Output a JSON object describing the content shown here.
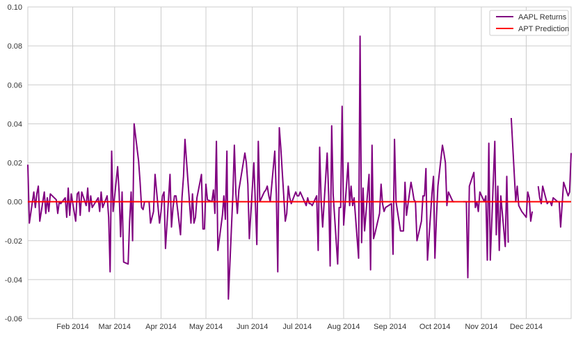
{
  "chart_data": {
    "type": "line",
    "title": "",
    "xlabel": "",
    "ylabel": "",
    "ylim": [
      -0.06,
      0.1
    ],
    "yticks": [
      -0.06,
      -0.04,
      -0.02,
      0.0,
      0.02,
      0.04,
      0.06,
      0.08,
      0.1
    ],
    "ytick_labels": [
      "-0.06",
      "-0.04",
      "-0.02",
      "0.00",
      "0.02",
      "0.04",
      "0.06",
      "0.08",
      "0.10"
    ],
    "xlim": [
      "2014-01-02",
      "2014-12-31"
    ],
    "xticks": [
      "2014-02-01",
      "2014-03-01",
      "2014-04-01",
      "2014-05-01",
      "2014-06-01",
      "2014-07-01",
      "2014-08-01",
      "2014-09-01",
      "2014-10-01",
      "2014-11-01",
      "2014-12-01"
    ],
    "xtick_labels": [
      "Feb 2014",
      "Mar 2014",
      "Apr 2014",
      "May 2014",
      "Jun 2014",
      "Jul 2014",
      "Aug 2014",
      "Sep 2014",
      "Oct 2014",
      "Nov 2014",
      "Dec 2014"
    ],
    "grid": true,
    "legend_position": "top-right",
    "series": [
      {
        "name": "AAPL Returns",
        "color": "#800080",
        "points": [
          [
            "2014-01-02",
            0.019
          ],
          [
            "2014-01-03",
            -0.011
          ],
          [
            "2014-01-06",
            0.005
          ],
          [
            "2014-01-07",
            -0.003
          ],
          [
            "2014-01-08",
            0.004
          ],
          [
            "2014-01-09",
            0.008
          ],
          [
            "2014-01-10",
            -0.01
          ],
          [
            "2014-01-13",
            0.005
          ],
          [
            "2014-01-14",
            -0.006
          ],
          [
            "2014-01-15",
            0.002
          ],
          [
            "2014-01-16",
            -0.005
          ],
          [
            "2014-01-17",
            0.004
          ],
          [
            "2014-01-21",
            0.001
          ],
          [
            "2014-01-22",
            -0.006
          ],
          [
            "2014-01-23",
            0.0
          ],
          [
            "2014-01-24",
            -0.001
          ],
          [
            "2014-01-27",
            0.002
          ],
          [
            "2014-01-28",
            -0.008
          ],
          [
            "2014-01-29",
            0.007
          ],
          [
            "2014-01-30",
            -0.007
          ],
          [
            "2014-01-31",
            0.004
          ],
          [
            "2014-02-03",
            -0.01
          ],
          [
            "2014-02-04",
            0.004
          ],
          [
            "2014-02-05",
            0.005
          ],
          [
            "2014-02-06",
            -0.007
          ],
          [
            "2014-02-07",
            0.005
          ],
          [
            "2014-02-10",
            -0.002
          ],
          [
            "2014-02-11",
            0.007
          ],
          [
            "2014-02-12",
            -0.005
          ],
          [
            "2014-02-13",
            0.003
          ],
          [
            "2014-02-14",
            -0.003
          ],
          [
            "2014-02-18",
            0.002
          ],
          [
            "2014-02-19",
            -0.005
          ],
          [
            "2014-02-20",
            0.005
          ],
          [
            "2014-02-21",
            -0.003
          ],
          [
            "2014-02-24",
            0.003
          ],
          [
            "2014-02-25",
            -0.008
          ],
          [
            "2014-02-26",
            -0.036
          ],
          [
            "2014-02-27",
            0.026
          ],
          [
            "2014-02-28",
            -0.005
          ],
          [
            "2014-03-03",
            0.018
          ],
          [
            "2014-03-04",
            0.005
          ],
          [
            "2014-03-05",
            -0.018
          ],
          [
            "2014-03-06",
            0.005
          ],
          [
            "2014-03-07",
            -0.031
          ],
          [
            "2014-03-10",
            -0.032
          ],
          [
            "2014-03-11",
            -0.01
          ],
          [
            "2014-03-12",
            0.005
          ],
          [
            "2014-03-13",
            -0.02
          ],
          [
            "2014-03-14",
            0.04
          ],
          [
            "2014-03-17",
            0.021
          ],
          [
            "2014-03-18",
            0.01
          ],
          [
            "2014-03-19",
            -0.003
          ],
          [
            "2014-03-20",
            -0.004
          ],
          [
            "2014-03-21",
            0.0
          ],
          [
            "2014-03-24",
            0.0
          ],
          [
            "2014-03-25",
            -0.011
          ],
          [
            "2014-03-26",
            -0.008
          ],
          [
            "2014-03-27",
            -0.005
          ],
          [
            "2014-03-28",
            0.014
          ],
          [
            "2014-03-31",
            -0.011
          ],
          [
            "2014-04-01",
            -0.005
          ],
          [
            "2014-04-02",
            0.003
          ],
          [
            "2014-04-03",
            0.005
          ],
          [
            "2014-04-04",
            -0.024
          ],
          [
            "2014-04-07",
            0.014
          ],
          [
            "2014-04-08",
            -0.013
          ],
          [
            "2014-04-09",
            -0.003
          ],
          [
            "2014-04-10",
            0.003
          ],
          [
            "2014-04-11",
            0.003
          ],
          [
            "2014-04-14",
            -0.017
          ],
          [
            "2014-04-15",
            0.002
          ],
          [
            "2014-04-16",
            0.013
          ],
          [
            "2014-04-17",
            0.032
          ],
          [
            "2014-04-21",
            -0.011
          ],
          [
            "2014-04-22",
            0.004
          ],
          [
            "2014-04-23",
            -0.011
          ],
          [
            "2014-04-24",
            -0.008
          ],
          [
            "2014-04-25",
            0.002
          ],
          [
            "2014-04-28",
            0.014
          ],
          [
            "2014-04-29",
            -0.014
          ],
          [
            "2014-04-30",
            -0.014
          ],
          [
            "2014-05-01",
            0.009
          ],
          [
            "2014-05-02",
            0.001
          ],
          [
            "2014-05-05",
            0.0
          ],
          [
            "2014-05-06",
            0.006
          ],
          [
            "2014-05-07",
            -0.006
          ],
          [
            "2014-05-08",
            0.031
          ],
          [
            "2014-05-09",
            -0.025
          ],
          [
            "2014-05-12",
            -0.007
          ],
          [
            "2014-05-13",
            0.003
          ],
          [
            "2014-05-14",
            -0.009
          ],
          [
            "2014-05-15",
            0.026
          ],
          [
            "2014-05-16",
            -0.05
          ],
          [
            "2014-05-19",
            0.004
          ],
          [
            "2014-05-20",
            0.029
          ],
          [
            "2014-05-21",
            0.004
          ],
          [
            "2014-05-22",
            -0.006
          ],
          [
            "2014-05-23",
            0.006
          ],
          [
            "2014-05-27",
            0.025
          ],
          [
            "2014-05-28",
            0.02
          ],
          [
            "2014-05-29",
            0.009
          ],
          [
            "2014-05-30",
            -0.019
          ],
          [
            "2014-06-02",
            0.02
          ],
          [
            "2014-06-03",
            0.0
          ],
          [
            "2014-06-04",
            -0.022
          ],
          [
            "2014-06-05",
            0.031
          ],
          [
            "2014-06-06",
            0.0
          ],
          [
            "2014-06-09",
            0.005
          ],
          [
            "2014-06-10",
            0.006
          ],
          [
            "2014-06-11",
            0.008
          ],
          [
            "2014-06-12",
            0.003
          ],
          [
            "2014-06-13",
            0.0
          ],
          [
            "2014-06-16",
            0.026
          ],
          [
            "2014-06-17",
            0.004
          ],
          [
            "2014-06-18",
            -0.036
          ],
          [
            "2014-06-19",
            0.038
          ],
          [
            "2014-06-20",
            0.028
          ],
          [
            "2014-06-23",
            -0.01
          ],
          [
            "2014-06-24",
            -0.006
          ],
          [
            "2014-06-25",
            0.008
          ],
          [
            "2014-06-26",
            0.002
          ],
          [
            "2014-06-27",
            -0.001
          ],
          [
            "2014-06-30",
            0.005
          ],
          [
            "2014-07-01",
            0.003
          ],
          [
            "2014-07-02",
            0.003
          ],
          [
            "2014-07-03",
            0.005
          ],
          [
            "2014-07-07",
            -0.002
          ],
          [
            "2014-07-08",
            0.002
          ],
          [
            "2014-07-09",
            -0.001
          ],
          [
            "2014-07-10",
            -0.001
          ],
          [
            "2014-07-11",
            -0.002
          ],
          [
            "2014-07-14",
            0.003
          ],
          [
            "2014-07-15",
            -0.025
          ],
          [
            "2014-07-16",
            0.028
          ],
          [
            "2014-07-17",
            0.0
          ],
          [
            "2014-07-18",
            -0.013
          ],
          [
            "2014-07-21",
            0.025
          ],
          [
            "2014-07-22",
            0.003
          ],
          [
            "2014-07-23",
            -0.033
          ],
          [
            "2014-07-24",
            0.039
          ],
          [
            "2014-07-25",
            0.004
          ],
          [
            "2014-07-28",
            -0.032
          ],
          [
            "2014-07-29",
            -0.003
          ],
          [
            "2014-07-30",
            -0.003
          ],
          [
            "2014-07-31",
            0.049
          ],
          [
            "2014-08-01",
            -0.012
          ],
          [
            "2014-08-04",
            0.02
          ],
          [
            "2014-08-05",
            -0.002
          ],
          [
            "2014-08-06",
            0.008
          ],
          [
            "2014-08-07",
            -0.002
          ],
          [
            "2014-08-08",
            0.002
          ],
          [
            "2014-08-11",
            -0.029
          ],
          [
            "2014-08-12",
            0.085
          ],
          [
            "2014-08-13",
            -0.021
          ],
          [
            "2014-08-14",
            0.007
          ],
          [
            "2014-08-15",
            -0.015
          ],
          [
            "2014-08-18",
            0.014
          ],
          [
            "2014-08-19",
            -0.035
          ],
          [
            "2014-08-20",
            0.029
          ],
          [
            "2014-08-21",
            -0.019
          ],
          [
            "2014-08-22",
            -0.016
          ],
          [
            "2014-08-25",
            -0.006
          ],
          [
            "2014-08-26",
            0.009
          ],
          [
            "2014-08-27",
            -0.001
          ],
          [
            "2014-08-28",
            -0.005
          ],
          [
            "2014-08-29",
            -0.003
          ],
          [
            "2014-09-02",
            -0.001
          ],
          [
            "2014-09-03",
            -0.027
          ],
          [
            "2014-09-04",
            0.032
          ],
          [
            "2014-09-05",
            0.0
          ],
          [
            "2014-09-08",
            -0.015
          ],
          [
            "2014-09-09",
            -0.015
          ],
          [
            "2014-09-10",
            -0.015
          ],
          [
            "2014-09-11",
            0.01
          ],
          [
            "2014-09-12",
            -0.007
          ],
          [
            "2014-09-15",
            0.01
          ],
          [
            "2014-09-16",
            0.006
          ],
          [
            "2014-09-17",
            0.001
          ],
          [
            "2014-09-18",
            0.0
          ],
          [
            "2014-09-19",
            -0.02
          ],
          [
            "2014-09-22",
            -0.01
          ],
          [
            "2014-09-23",
            0.003
          ],
          [
            "2014-09-24",
            0.003
          ],
          [
            "2014-09-25",
            0.017
          ],
          [
            "2014-09-26",
            -0.03
          ],
          [
            "2014-09-29",
            0.004
          ],
          [
            "2014-09-30",
            0.013
          ],
          [
            "2014-10-01",
            -0.029
          ],
          [
            "2014-10-02",
            -0.008
          ],
          [
            "2014-10-03",
            0.008
          ],
          [
            "2014-10-06",
            0.029
          ],
          [
            "2014-10-07",
            0.025
          ],
          [
            "2014-10-08",
            0.02
          ],
          [
            "2014-10-09",
            -0.002
          ],
          [
            "2014-10-10",
            0.005
          ],
          [
            "2014-10-13",
            0.0
          ],
          [
            "2014-10-14",
            0.0
          ],
          [
            "2014-10-20",
            0.0
          ],
          [
            "2014-10-21",
            0.0
          ],
          [
            "2014-10-22",
            0.0
          ],
          [
            "2014-10-23",
            -0.039
          ],
          [
            "2014-10-24",
            0.008
          ],
          [
            "2014-10-27",
            0.015
          ],
          [
            "2014-10-28",
            -0.003
          ],
          [
            "2014-10-29",
            0.0
          ],
          [
            "2014-10-30",
            -0.005
          ],
          [
            "2014-10-31",
            0.005
          ],
          [
            "2014-11-03",
            0.0
          ],
          [
            "2014-11-04",
            0.003
          ],
          [
            "2014-11-05",
            -0.03
          ],
          [
            "2014-11-06",
            0.03
          ],
          [
            "2014-11-07",
            -0.03
          ],
          [
            "2014-11-10",
            0.031
          ],
          [
            "2014-11-11",
            -0.017
          ],
          [
            "2014-11-12",
            0.008
          ],
          [
            "2014-11-13",
            -0.025
          ],
          [
            "2014-11-14",
            0.003
          ],
          [
            "2014-11-17",
            -0.023
          ],
          [
            "2014-11-18",
            0.013
          ],
          [
            "2014-11-19",
            -0.021
          ],
          [
            "2014-11-21",
            0.043
          ],
          [
            "2014-11-24",
            0.0
          ],
          [
            "2014-11-25",
            0.008
          ],
          [
            "2014-11-26",
            -0.002
          ],
          [
            "2014-11-28",
            -0.005
          ],
          [
            "2014-12-01",
            -0.008
          ],
          [
            "2014-12-02",
            0.005
          ],
          [
            "2014-12-03",
            0.002
          ],
          [
            "2014-12-04",
            -0.01
          ],
          [
            "2014-12-05",
            -0.005
          ],
          [
            "2014-12-09",
            0.008
          ],
          [
            "2014-12-10",
            0.002
          ],
          [
            "2014-12-11",
            -0.001
          ],
          [
            "2014-12-12",
            0.008
          ],
          [
            "2014-12-15",
            -0.001
          ],
          [
            "2014-12-16",
            0.0
          ],
          [
            "2014-12-17",
            0.0
          ],
          [
            "2014-12-18",
            -0.002
          ],
          [
            "2014-12-19",
            0.002
          ],
          [
            "2014-12-22",
            0.0
          ],
          [
            "2014-12-23",
            0.0
          ],
          [
            "2014-12-24",
            -0.013
          ],
          [
            "2014-12-26",
            0.01
          ],
          [
            "2014-12-29",
            0.003
          ],
          [
            "2014-12-30",
            0.005
          ],
          [
            "2014-12-31",
            0.025
          ]
        ],
        "gaps_after": [
          "2014-10-14",
          "2014-11-19",
          "2014-12-05"
        ]
      },
      {
        "name": "APT Prediction",
        "color": "#ff0000",
        "points": [
          [
            "2014-01-02",
            0.0
          ],
          [
            "2014-12-31",
            0.0
          ]
        ]
      }
    ]
  }
}
